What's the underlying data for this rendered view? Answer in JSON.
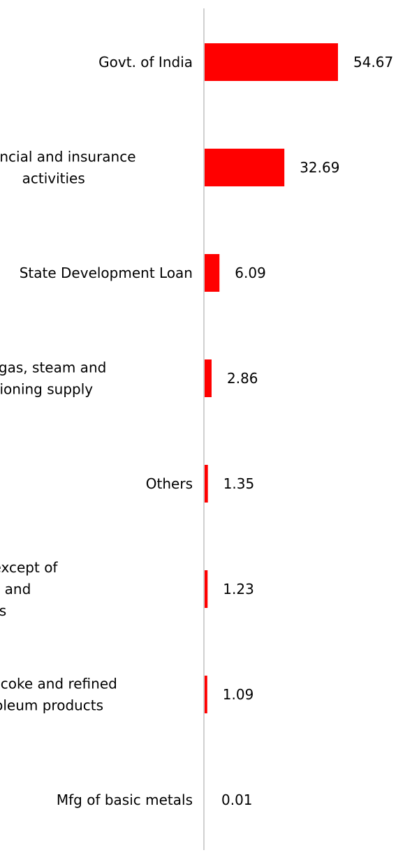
{
  "chart_data": {
    "type": "bar",
    "orientation": "horizontal",
    "categories": [
      [
        "Govt. of India"
      ],
      [
        "Financial and insurance",
        "activities"
      ],
      [
        "State Development Loan"
      ],
      [
        "Electricity, gas, steam and",
        "air conditioning supply"
      ],
      [
        "Others"
      ],
      [
        "Wholesale trade, except of",
        "motor vehicles and",
        "motorcycles"
      ],
      [
        "Mfg of coke and refined",
        "petroleum products"
      ],
      [
        "Mfg of basic metals"
      ]
    ],
    "values": [
      54.67,
      32.69,
      6.09,
      2.86,
      1.35,
      1.23,
      1.09,
      0.01
    ],
    "value_labels": [
      "54.67",
      "32.69",
      "6.09",
      "2.86",
      "1.35",
      "1.23",
      "1.09",
      "0.01"
    ],
    "xlim": [
      0,
      54.67
    ],
    "grid": false,
    "legend": "none",
    "colors": {
      "bar": "#ff0000",
      "axis": "#d0d0d0",
      "text": "#000000"
    }
  }
}
